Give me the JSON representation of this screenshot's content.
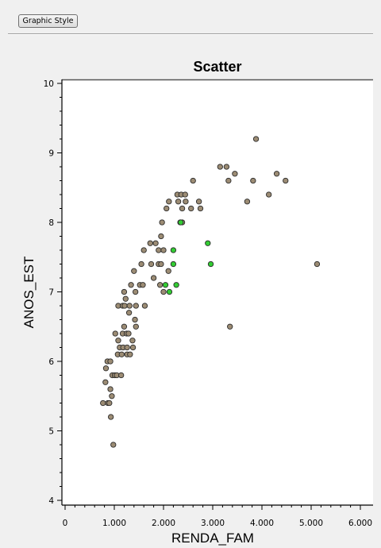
{
  "toolbar": {
    "graphic_style_label": "Graphic Style"
  },
  "chart_data": {
    "type": "scatter",
    "title": "Scatter",
    "xlabel": "RENDA_FAM",
    "ylabel": "ANOS_EST",
    "xlim": [
      0,
      6000
    ],
    "ylim": [
      4,
      10
    ],
    "x_ticks": [
      "0",
      "1.000",
      "2.000",
      "3.000",
      "4.000",
      "5.000",
      "6.000"
    ],
    "y_ticks": [
      "4",
      "5",
      "6",
      "7",
      "8",
      "9",
      "10"
    ],
    "grid": false,
    "colors": {
      "normal": "#9c8c74",
      "highlight": "#33cc33",
      "edge": "#2a2a2a",
      "plot_bg": "#ffffff"
    },
    "series": [
      {
        "points": [
          [
            980,
            4.8
          ],
          [
            930,
            5.2
          ],
          [
            950,
            5.5
          ],
          [
            770,
            5.4
          ],
          [
            870,
            5.4
          ],
          [
            900,
            5.4
          ],
          [
            920,
            5.6
          ],
          [
            820,
            5.7
          ],
          [
            960,
            5.8
          ],
          [
            1010,
            5.8
          ],
          [
            1050,
            5.8
          ],
          [
            1140,
            5.8
          ],
          [
            830,
            5.9
          ],
          [
            860,
            6.0
          ],
          [
            920,
            6.0
          ],
          [
            1070,
            6.1
          ],
          [
            1150,
            6.1
          ],
          [
            1260,
            6.1
          ],
          [
            1320,
            6.1
          ],
          [
            1110,
            6.2
          ],
          [
            1180,
            6.2
          ],
          [
            1260,
            6.2
          ],
          [
            1380,
            6.2
          ],
          [
            1080,
            6.3
          ],
          [
            1370,
            6.3
          ],
          [
            1020,
            6.4
          ],
          [
            1170,
            6.4
          ],
          [
            1250,
            6.4
          ],
          [
            1290,
            6.4
          ],
          [
            1200,
            6.5
          ],
          [
            1440,
            6.5
          ],
          [
            1420,
            6.6
          ],
          [
            1300,
            6.7
          ],
          [
            1080,
            6.8
          ],
          [
            1170,
            6.8
          ],
          [
            1210,
            6.8
          ],
          [
            1310,
            6.8
          ],
          [
            1440,
            6.8
          ],
          [
            1620,
            6.8
          ],
          [
            1230,
            6.9
          ],
          [
            1430,
            7.0
          ],
          [
            1200,
            7.0
          ],
          [
            1520,
            7.1
          ],
          [
            1580,
            7.1
          ],
          [
            1340,
            7.1
          ],
          [
            1930,
            7.1
          ],
          [
            2000,
            7.0
          ],
          [
            1800,
            7.2
          ],
          [
            1400,
            7.3
          ],
          [
            1550,
            7.4
          ],
          [
            1750,
            7.4
          ],
          [
            1900,
            7.4
          ],
          [
            1950,
            7.4
          ],
          [
            2100,
            7.3
          ],
          [
            1900,
            7.6
          ],
          [
            2000,
            7.6
          ],
          [
            1600,
            7.6
          ],
          [
            1730,
            7.7
          ],
          [
            1840,
            7.7
          ],
          [
            1950,
            7.8
          ],
          [
            1970,
            8.0
          ],
          [
            2060,
            8.2
          ],
          [
            2110,
            8.3
          ],
          [
            2300,
            8.3
          ],
          [
            2450,
            8.3
          ],
          [
            2560,
            8.2
          ],
          [
            2720,
            8.3
          ],
          [
            2750,
            8.2
          ],
          [
            2280,
            8.4
          ],
          [
            2360,
            8.4
          ],
          [
            2440,
            8.4
          ],
          [
            2380,
            8.2
          ],
          [
            2600,
            8.6
          ],
          [
            3150,
            8.8
          ],
          [
            3280,
            8.8
          ],
          [
            3320,
            8.6
          ],
          [
            3450,
            8.7
          ],
          [
            3700,
            8.3
          ],
          [
            3820,
            8.6
          ],
          [
            3880,
            9.2
          ],
          [
            4140,
            8.4
          ],
          [
            4300,
            8.7
          ],
          [
            4480,
            8.6
          ],
          [
            3350,
            6.5
          ],
          [
            5120,
            7.4
          ],
          [
            2340,
            8.0
          ],
          [
            2380,
            8.0
          ]
        ]
      },
      {
        "highlight": true,
        "points": [
          [
            2040,
            7.1
          ],
          [
            2120,
            7.0
          ],
          [
            2260,
            7.1
          ],
          [
            2200,
            7.4
          ],
          [
            2200,
            7.6
          ],
          [
            2350,
            8.0
          ],
          [
            2900,
            7.7
          ],
          [
            2960,
            7.4
          ]
        ]
      }
    ]
  }
}
